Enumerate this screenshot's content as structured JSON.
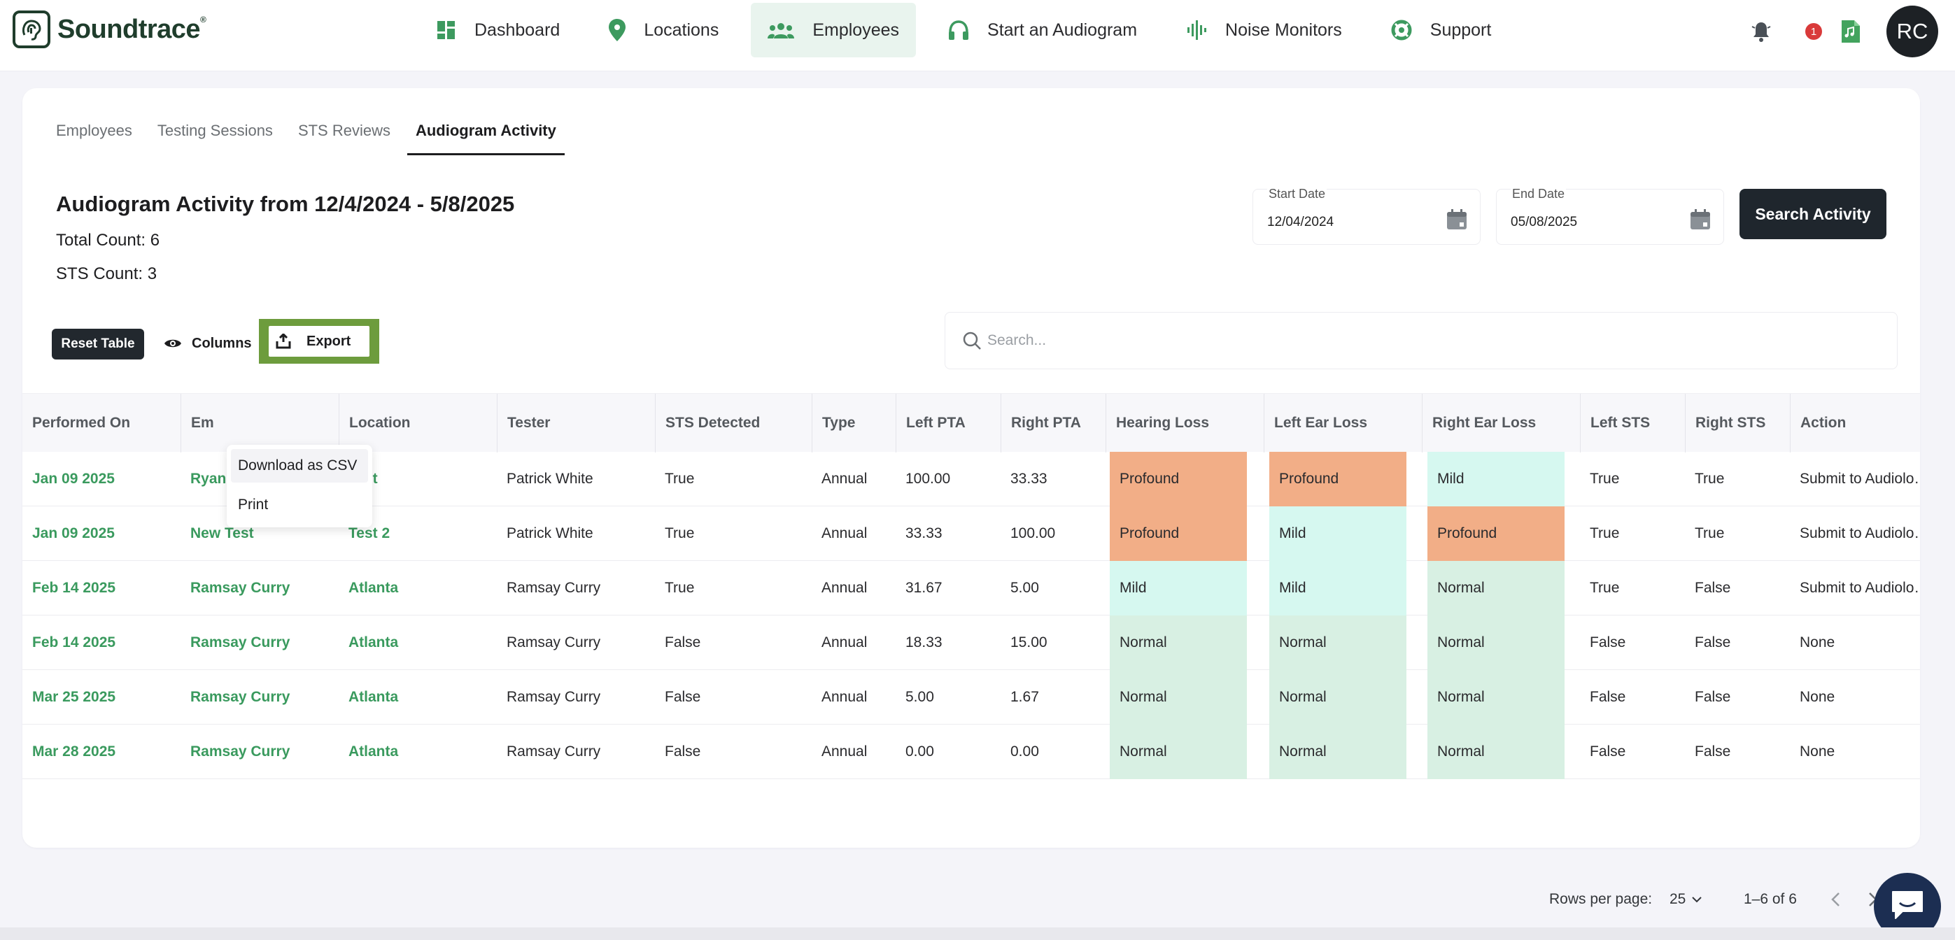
{
  "brand": {
    "name": "Soundtrace",
    "mark": "®"
  },
  "nav": [
    {
      "label": "Dashboard",
      "icon": "dashboard-icon"
    },
    {
      "label": "Locations",
      "icon": "map-pin-icon"
    },
    {
      "label": "Employees",
      "icon": "people-icon",
      "active": true
    },
    {
      "label": "Start an Audiogram",
      "icon": "headphones-icon"
    },
    {
      "label": "Noise Monitors",
      "icon": "soundwave-icon"
    },
    {
      "label": "Support",
      "icon": "lifebuoy-icon"
    }
  ],
  "header_right": {
    "notification_count": "1",
    "avatar_initials": "RC"
  },
  "tabs": [
    {
      "label": "Employees"
    },
    {
      "label": "Testing Sessions"
    },
    {
      "label": "STS Reviews"
    },
    {
      "label": "Audiogram Activity",
      "active": true
    }
  ],
  "activity": {
    "title": "Audiogram Activity from 12/4/2024 - 5/8/2025",
    "total_count": "Total Count: 6",
    "sts_count": "STS Count: 3"
  },
  "filters": {
    "start_label": "Start Date",
    "start_value": "12/04/2024",
    "end_label": "End Date",
    "end_value": "05/08/2025",
    "search_button": "Search Activity"
  },
  "toolbar": {
    "reset": "Reset Table",
    "columns": "Columns",
    "export": "Export",
    "search_placeholder": "Search..."
  },
  "export_menu": [
    "Download as CSV",
    "Print"
  ],
  "table": {
    "columns": [
      "Performed On",
      "Em",
      "Location",
      "Tester",
      "STS Detected",
      "Type",
      "Left PTA",
      "Right PTA",
      "Hearing Loss",
      "Left Ear Loss",
      "Right Ear Loss",
      "Left STS",
      "Right STS",
      "Action"
    ],
    "rows": [
      [
        "Jan 09 2025",
        "Ryan Kast",
        "Test",
        "Patrick White",
        "True",
        "Annual",
        "100.00",
        "33.33",
        "Profound",
        "Profound",
        "Mild",
        "True",
        "True",
        "Submit to Audiolo…"
      ],
      [
        "Jan 09 2025",
        "New Test",
        "Test 2",
        "Patrick White",
        "True",
        "Annual",
        "33.33",
        "100.00",
        "Profound",
        "Mild",
        "Profound",
        "True",
        "True",
        "Submit to Audiolo…"
      ],
      [
        "Feb 14 2025",
        "Ramsay Curry",
        "Atlanta",
        "Ramsay Curry",
        "True",
        "Annual",
        "31.67",
        "5.00",
        "Mild",
        "Mild",
        "Normal",
        "True",
        "False",
        "Submit to Audiolo…"
      ],
      [
        "Feb 14 2025",
        "Ramsay Curry",
        "Atlanta",
        "Ramsay Curry",
        "False",
        "Annual",
        "18.33",
        "15.00",
        "Normal",
        "Normal",
        "Normal",
        "False",
        "False",
        "None"
      ],
      [
        "Mar 25 2025",
        "Ramsay Curry",
        "Atlanta",
        "Ramsay Curry",
        "False",
        "Annual",
        "5.00",
        "1.67",
        "Normal",
        "Normal",
        "Normal",
        "False",
        "False",
        "None"
      ],
      [
        "Mar 28 2025",
        "Ramsay Curry",
        "Atlanta",
        "Ramsay Curry",
        "False",
        "Annual",
        "0.00",
        "0.00",
        "Normal",
        "Normal",
        "Normal",
        "False",
        "False",
        "None"
      ]
    ]
  },
  "loss_colors": {
    "Profound": "#f2ae87",
    "Mild": "#d6f8f0",
    "Normal": "#d8f0e3"
  },
  "pagination": {
    "rows_label": "Rows per page:",
    "rows_value": "25",
    "range": "1–6 of 6"
  }
}
